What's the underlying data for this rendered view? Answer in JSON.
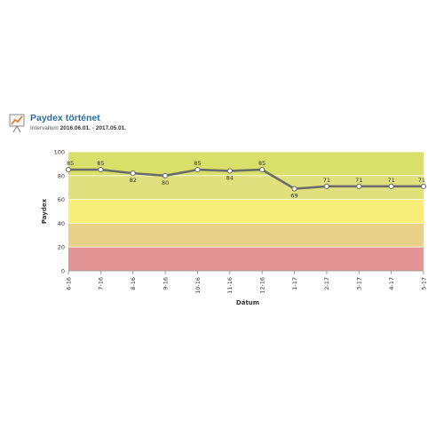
{
  "header": {
    "title": "Paydex történet",
    "subtitle_prefix": "Intervallum",
    "subtitle_range": "2016.06.01. - 2017.05.01."
  },
  "chart_data": {
    "type": "line",
    "categories": [
      "6-16",
      "7-16",
      "8-16",
      "9-16",
      "10-16",
      "11-16",
      "12-16",
      "1-17",
      "2-17",
      "3-17",
      "4-17",
      "5-17"
    ],
    "series": [
      {
        "values": [
          85,
          85,
          82,
          80,
          85,
          84,
          85,
          69,
          71,
          71,
          71,
          71
        ]
      }
    ],
    "xlabel": "Dátum",
    "ylabel": "Paydex",
    "ylim": [
      0,
      100
    ],
    "yticks": [
      0,
      20,
      40,
      60,
      80,
      100
    ],
    "bands": [
      {
        "from": 0,
        "to": 20,
        "color": "#e39494"
      },
      {
        "from": 20,
        "to": 40,
        "color": "#e9d089"
      },
      {
        "from": 40,
        "to": 60,
        "color": "#f7ef79"
      },
      {
        "from": 60,
        "to": 80,
        "color": "#e0e07c"
      },
      {
        "from": 80,
        "to": 100,
        "color": "#d9e06a"
      }
    ],
    "line_color": "#6b6b6b",
    "marker_fill": "#ffffff"
  }
}
